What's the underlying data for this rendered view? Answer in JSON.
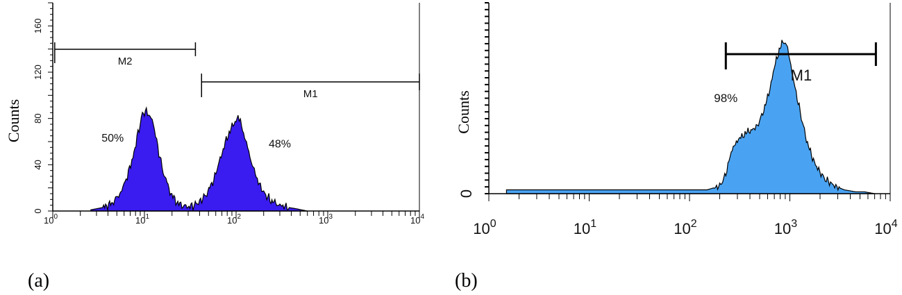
{
  "chart_data": [
    {
      "panel_label": "(a)",
      "type": "area",
      "ylabel": "Counts",
      "xscale": "log",
      "xlim": [
        1,
        10000
      ],
      "ylim": [
        0,
        180
      ],
      "x_ticks": [
        {
          "base": "10",
          "exp": "0"
        },
        {
          "base": "10",
          "exp": "1"
        },
        {
          "base": "10",
          "exp": "2"
        },
        {
          "base": "10",
          "exp": "3"
        },
        {
          "base": "10",
          "exp": "4"
        }
      ],
      "y_ticks": [
        "0",
        "40",
        "80",
        "120",
        "160"
      ],
      "y_tick_values": [
        0,
        40,
        80,
        120,
        160
      ],
      "fill_color": "#3a1cf0",
      "series": [
        {
          "x": [
            2.6,
            3.5,
            4.5,
            5.5,
            6.5,
            7.5,
            8.5,
            9.5,
            10.5,
            11.5,
            12.5,
            14,
            16,
            19,
            22,
            27,
            33,
            40,
            48,
            57,
            67,
            80,
            95,
            105,
            115,
            130,
            150,
            175,
            200,
            240,
            300,
            380,
            450,
            520,
            600
          ],
          "y": [
            1,
            3,
            7,
            16,
            30,
            47,
            67,
            84,
            87,
            82,
            76,
            55,
            34,
            17,
            8,
            4,
            4,
            8,
            15,
            27,
            45,
            64,
            76,
            81,
            74,
            58,
            40,
            25,
            16,
            9,
            5,
            3,
            2,
            1,
            0
          ]
        }
      ],
      "markers": [
        {
          "label": "M2",
          "x_start": 1.05,
          "x_end": 36
        },
        {
          "label": "M1",
          "x_start": 42,
          "x_end": 10000
        }
      ],
      "annotations": [
        {
          "text": "50%",
          "x": 4.5,
          "y": 60
        },
        {
          "text": "48%",
          "x": 300,
          "y": 55
        }
      ]
    },
    {
      "panel_label": "(b)",
      "type": "area",
      "ylabel": "Counts",
      "xscale": "log",
      "xlim": [
        1,
        10000
      ],
      "ylim": [
        0,
        100
      ],
      "x_ticks": [
        {
          "base": "10",
          "exp": "0"
        },
        {
          "base": "10",
          "exp": "1"
        },
        {
          "base": "10",
          "exp": "2"
        },
        {
          "base": "10",
          "exp": "3"
        },
        {
          "base": "10",
          "exp": "4"
        }
      ],
      "y_ticks": [
        "0"
      ],
      "y_tick_values": [
        0
      ],
      "fill_color": "#4aa3f2",
      "series": [
        {
          "x": [
            1.5,
            3,
            10,
            50,
            150,
            200,
            230,
            260,
            300,
            350,
            400,
            450,
            500,
            550,
            600,
            650,
            700,
            750,
            800,
            850,
            900,
            950,
            1000,
            1100,
            1300,
            1500,
            1800,
            2200,
            2800,
            3500,
            4500,
            5500,
            7000
          ],
          "y": [
            2,
            2,
            2,
            2,
            2,
            4,
            10,
            22,
            28,
            31,
            33,
            34,
            38,
            44,
            50,
            58,
            66,
            72,
            77,
            80,
            79,
            76,
            70,
            58,
            40,
            26,
            15,
            8,
            4,
            2,
            1,
            1,
            0
          ]
        }
      ],
      "markers": [
        {
          "label": "M1",
          "x_start": 230,
          "x_end": 7200
        }
      ],
      "annotations": [
        {
          "text": "98%",
          "x": 230,
          "y": 48
        }
      ]
    }
  ]
}
